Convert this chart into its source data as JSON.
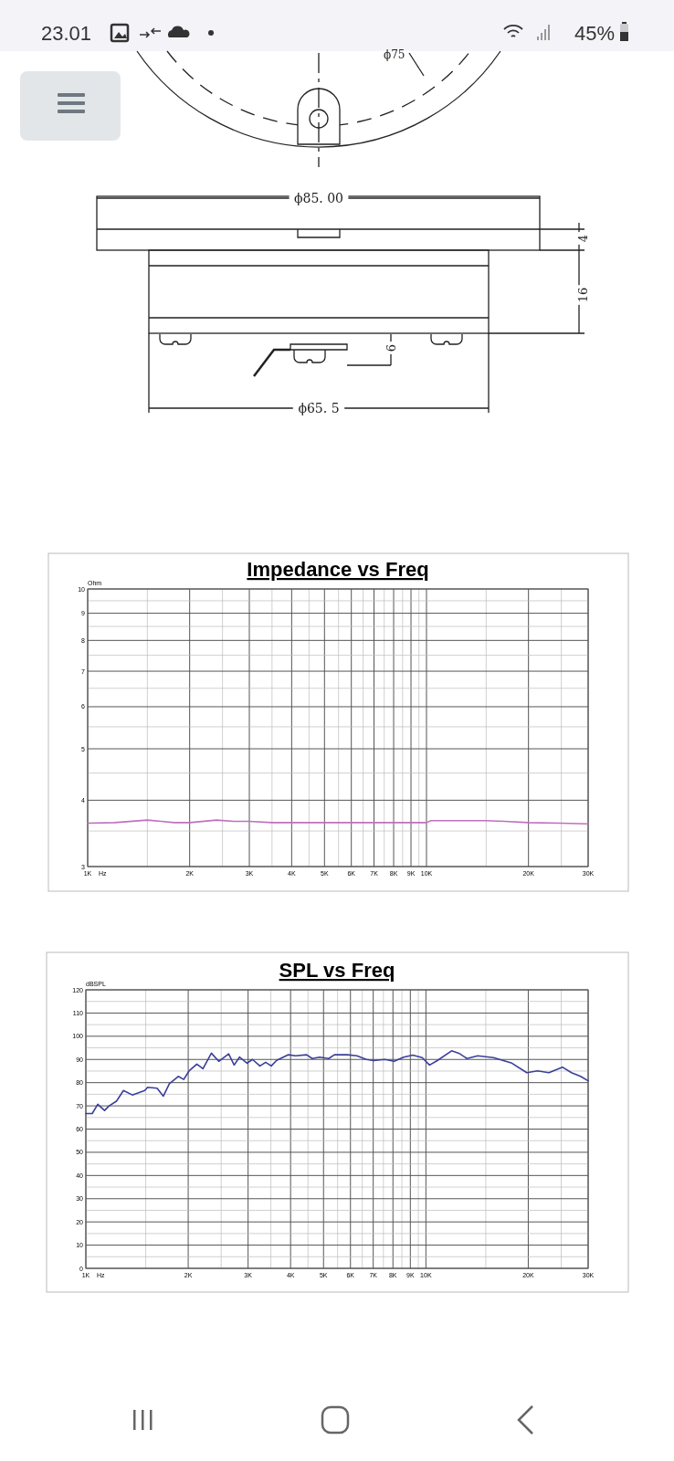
{
  "chart_data": [
    {
      "type": "other",
      "annotations": [
        "23.01",
        "45%",
        "ϕ75",
        "ϕ85. 00",
        "4",
        "16",
        "6",
        "ϕ65. 5"
      ]
    },
    {
      "type": "line",
      "title": "Impedance vs Freq",
      "xlabel": "Hz",
      "ylabel": "Ohm",
      "log": "xy",
      "grid": true,
      "xlim": [
        1000,
        30000
      ],
      "xticks": [
        {
          "value": 1000,
          "label": "1K"
        },
        {
          "value": 1500,
          "label": null
        },
        {
          "value": 2000,
          "label": "2K"
        },
        {
          "value": 2500,
          "label": null
        },
        {
          "value": 3000,
          "label": "3K"
        },
        {
          "value": 3500,
          "label": null
        },
        {
          "value": 4000,
          "label": "4K"
        },
        {
          "value": 4500,
          "label": null
        },
        {
          "value": 5000,
          "label": "5K"
        },
        {
          "value": 5500,
          "label": null
        },
        {
          "value": 6000,
          "label": "6K"
        },
        {
          "value": 6500,
          "label": null
        },
        {
          "value": 7000,
          "label": "7K"
        },
        {
          "value": 7500,
          "label": null
        },
        {
          "value": 8000,
          "label": "8K"
        },
        {
          "value": 8500,
          "label": null
        },
        {
          "value": 9000,
          "label": "9K"
        },
        {
          "value": 9500,
          "label": null
        },
        {
          "value": 10000,
          "label": "10K"
        },
        {
          "value": 15000,
          "label": null
        },
        {
          "value": 20000,
          "label": "20K"
        },
        {
          "value": 25000,
          "label": null
        },
        {
          "value": 30000,
          "label": "30K"
        }
      ],
      "ylim": [
        3,
        10
      ],
      "yticks": [
        3,
        {
          "value": 3.5,
          "label": null
        },
        4,
        {
          "value": 4.5,
          "label": null
        },
        5,
        {
          "value": 5.5,
          "label": null
        },
        6,
        {
          "value": 6.5,
          "label": null
        },
        7,
        {
          "value": 7.5,
          "label": null
        },
        8,
        {
          "value": 8.5,
          "label": null
        },
        9,
        {
          "value": 9.5,
          "label": null
        },
        10
      ],
      "series": [
        {
          "color": "#c070c0",
          "x": [
            1000,
            1200,
            1500,
            1650,
            1800,
            2000,
            2400,
            2700,
            3000,
            3500,
            4000,
            6000,
            8000,
            10000,
            10300,
            12000,
            15000,
            17000,
            20000,
            25000,
            30000
          ],
          "values": [
            3.62,
            3.63,
            3.67,
            3.65,
            3.63,
            3.63,
            3.67,
            3.65,
            3.65,
            3.63,
            3.63,
            3.63,
            3.63,
            3.63,
            3.66,
            3.66,
            3.66,
            3.65,
            3.63,
            3.62,
            3.61
          ]
        }
      ]
    },
    {
      "type": "line",
      "title": "SPL vs Freq",
      "xlabel": "Hz",
      "ylabel": "dBSPL",
      "log": "x",
      "grid": true,
      "xlim": [
        1000,
        30000
      ],
      "xticks": [
        {
          "value": 1000,
          "label": "1K"
        },
        {
          "value": 1500,
          "label": null
        },
        {
          "value": 2000,
          "label": "2K"
        },
        {
          "value": 2500,
          "label": null
        },
        {
          "value": 3000,
          "label": "3K"
        },
        {
          "value": 3500,
          "label": null
        },
        {
          "value": 4000,
          "label": "4K"
        },
        {
          "value": 4500,
          "label": null
        },
        {
          "value": 5000,
          "label": "5K"
        },
        {
          "value": 5500,
          "label": null
        },
        {
          "value": 6000,
          "label": "6K"
        },
        {
          "value": 6500,
          "label": null
        },
        {
          "value": 7000,
          "label": "7K"
        },
        {
          "value": 7500,
          "label": null
        },
        {
          "value": 8000,
          "label": "8K"
        },
        {
          "value": 8500,
          "label": null
        },
        {
          "value": 9000,
          "label": "9K"
        },
        {
          "value": 9500,
          "label": null
        },
        {
          "value": 10000,
          "label": "10K"
        },
        {
          "value": 15000,
          "label": null
        },
        {
          "value": 20000,
          "label": "20K"
        },
        {
          "value": 25000,
          "label": null
        },
        {
          "value": 30000,
          "label": "30K"
        }
      ],
      "ylim": [
        0,
        120
      ],
      "yticks": [
        0,
        {
          "value": 5,
          "label": null
        },
        10,
        {
          "value": 15,
          "label": null
        },
        20,
        {
          "value": 25,
          "label": null
        },
        30,
        {
          "value": 35,
          "label": null
        },
        40,
        {
          "value": 45,
          "label": null
        },
        50,
        {
          "value": 55,
          "label": null
        },
        60,
        {
          "value": 65,
          "label": null
        },
        70,
        {
          "value": 75,
          "label": null
        },
        80,
        {
          "value": 85,
          "label": null
        },
        90,
        {
          "value": 95,
          "label": null
        },
        100,
        {
          "value": 105,
          "label": null
        },
        110,
        {
          "value": 115,
          "label": null
        },
        120
      ],
      "series": [
        {
          "color": "#3a3f9a",
          "x": [
            1000,
            1044,
            1084,
            1135,
            1170,
            1230,
            1290,
            1370,
            1490,
            1520,
            1620,
            1690,
            1760,
            1870,
            1940,
            2010,
            2120,
            2210,
            2340,
            2460,
            2630,
            2730,
            2830,
            2980,
            3090,
            3250,
            3380,
            3510,
            3640,
            3930,
            4140,
            4460,
            4630,
            4870,
            5180,
            5380,
            5880,
            6270,
            6680,
            7020,
            7570,
            8070,
            8600,
            9150,
            9750,
            10250,
            10800,
            11900,
            12500,
            13200,
            14200,
            15800,
            17900,
            19800,
            21300,
            23000,
            25200,
            26800,
            28500,
            30000
          ],
          "values": [
            66.7,
            66.7,
            70.7,
            68,
            70,
            72,
            76.6,
            74.7,
            76.6,
            78,
            77.6,
            74.2,
            79.5,
            82.7,
            81.4,
            85,
            88,
            86,
            92.7,
            89.2,
            92.4,
            87.6,
            91,
            88.4,
            90,
            87.2,
            88.8,
            87.2,
            89.6,
            92,
            91.6,
            92,
            90.4,
            91,
            90.4,
            92,
            92,
            91.6,
            90,
            89.5,
            90,
            89.2,
            91,
            91.9,
            90.8,
            87.6,
            89.5,
            93.7,
            92.7,
            90.4,
            91.6,
            90.8,
            88.4,
            84.3,
            85.1,
            84.3,
            86.7,
            84.3,
            82.7,
            80.8
          ]
        }
      ]
    }
  ]
}
